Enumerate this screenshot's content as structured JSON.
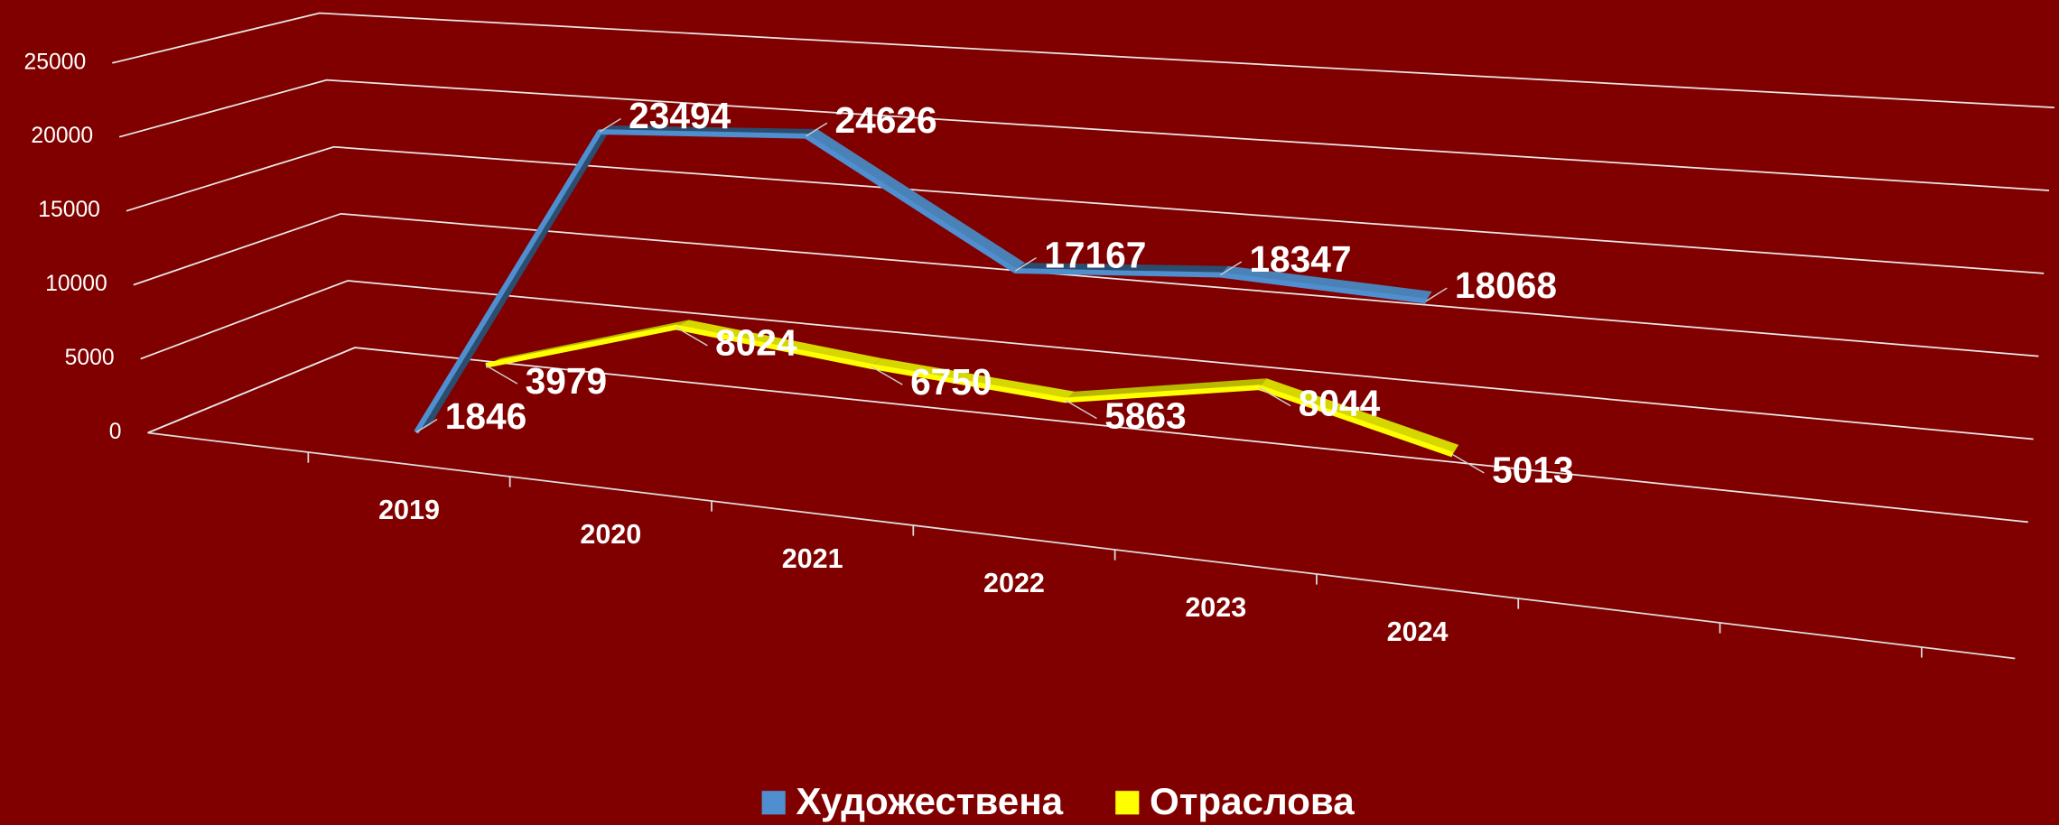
{
  "chart_data": {
    "type": "line3d",
    "categories": [
      "2019",
      "2020",
      "2021",
      "2022",
      "2023",
      "2024"
    ],
    "series": [
      {
        "name": "Художествена",
        "color": "#4f8fd0",
        "values": [
          1846,
          23494,
          24626,
          17167,
          18347,
          18068
        ]
      },
      {
        "name": "Отраслова",
        "color": "#ffff00",
        "values": [
          3979,
          8024,
          6750,
          5863,
          8044,
          5013
        ]
      }
    ],
    "ylim": [
      0,
      25000
    ],
    "yticks": [
      0,
      5000,
      10000,
      15000,
      20000,
      25000
    ],
    "grid": true,
    "legend": "bottom"
  }
}
